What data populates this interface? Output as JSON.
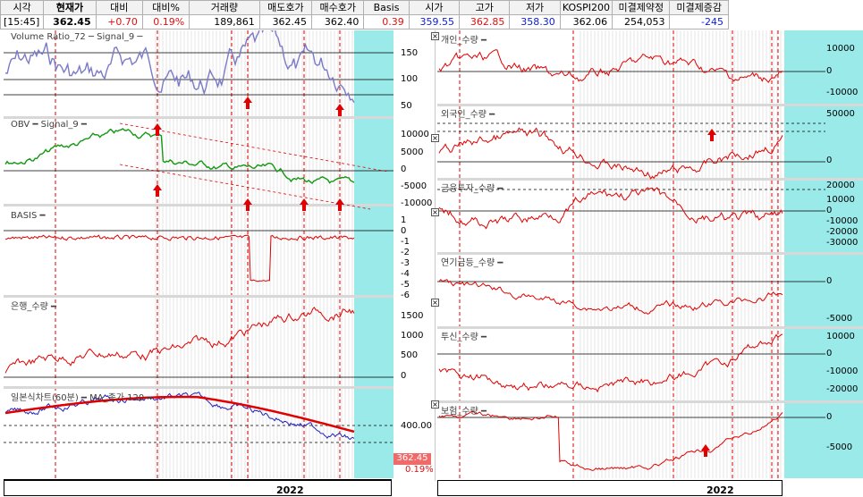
{
  "quote": {
    "headers": [
      "시각",
      "현재가",
      "대비",
      "대비%",
      "거래량",
      "매도호가",
      "매수호가",
      "Basis",
      "시가",
      "고가",
      "저가",
      "KOSPI200",
      "미결제약정",
      "미결제증감"
    ],
    "values": [
      "[15:45]",
      "362.45",
      "+0.70",
      "0.19%",
      "189,861",
      "362.45",
      "362.40",
      "0.39",
      "359.55",
      "362.85",
      "358.30",
      "362.06",
      "254,053",
      "-245"
    ]
  },
  "colors": {
    "plot_bg": "#9aeaea",
    "plot_stripe": "#b0b0b0",
    "red_vline": "#e00000",
    "volume_line": "#7a7ac8",
    "obv_line": "#119911",
    "series_red": "#e00000",
    "ma_line": "#e00000",
    "price_line": "#2020c0"
  },
  "left": {
    "panels": [
      {
        "title": "Volume Ratio_72 ─ Signal_9 ─",
        "yticks": [
          "150",
          "100",
          "50"
        ]
      },
      {
        "title": "OBV ━ Signal_9 ━",
        "yticks": [
          "10000",
          "5000",
          "0",
          "-5000",
          "-10000"
        ]
      },
      {
        "title": "BASIS ━",
        "yticks": [
          "1",
          "0",
          "-1",
          "-2",
          "-3",
          "-4",
          "-5",
          "-6"
        ]
      },
      {
        "title": "은행_수량 ━",
        "yticks": [
          "1500",
          "1000",
          "500",
          "0"
        ]
      },
      {
        "title": "일본식차트(60분) ━ MA_종가 120 ━",
        "yticks": [
          "400.00"
        ]
      }
    ],
    "price_badge": "362.45",
    "pct_badge": "0.19%",
    "x_label": "2022"
  },
  "right": {
    "panels": [
      {
        "title": "개인_수량 ━",
        "yticks": [
          "10000",
          "0",
          "-10000"
        ]
      },
      {
        "title": "외국인_수량 ━",
        "yticks": [
          "50000",
          "0"
        ]
      },
      {
        "title": "금융투자_수량 ━",
        "yticks": [
          "20000",
          "10000",
          "0",
          "-10000",
          "-20000",
          "-30000"
        ]
      },
      {
        "title": "연기금등_수량 ━",
        "yticks": [
          "0",
          "-5000"
        ]
      },
      {
        "title": "투신_수량 ━",
        "yticks": [
          "10000",
          "0",
          "-10000",
          "-20000"
        ]
      },
      {
        "title": "보험_수량 ━",
        "yticks": [
          "0",
          "-5000"
        ]
      }
    ],
    "x_label": "2022"
  }
}
